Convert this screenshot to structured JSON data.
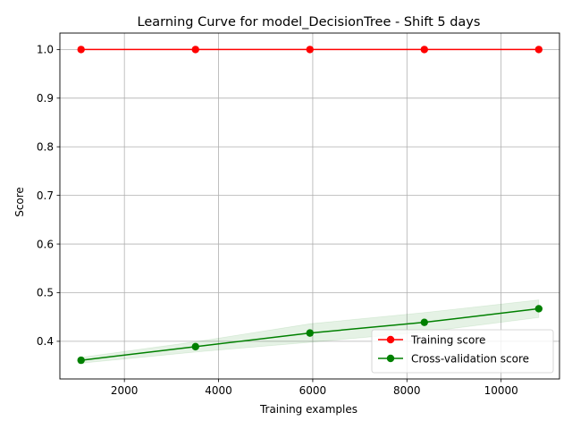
{
  "chart_data": {
    "type": "line",
    "title": "Learning Curve for model_DecisionTree - Shift 5 days",
    "xlabel": "Training examples",
    "ylabel": "Score",
    "xlim": [
      630,
      11240
    ],
    "ylim": [
      0.3226,
      1.0338
    ],
    "grid": true,
    "legend_position": "lower-right",
    "x_ticks": [
      2000,
      4000,
      6000,
      8000,
      10000
    ],
    "y_ticks": [
      0.4,
      0.5,
      0.6,
      0.7,
      0.8,
      0.9,
      1.0
    ],
    "y_tick_labels": [
      "0.4",
      "0.5",
      "0.6",
      "0.7",
      "0.8",
      "0.9",
      "1.0"
    ],
    "x": [
      1080,
      3510,
      5940,
      8370,
      10800
    ],
    "series": [
      {
        "name": "Training score",
        "color": "#ff0000",
        "values": [
          1.0,
          1.0,
          1.0,
          1.0,
          1.0
        ],
        "band_lower": [
          1.0,
          1.0,
          1.0,
          1.0,
          1.0
        ],
        "band_upper": [
          1.0,
          1.0,
          1.0,
          1.0,
          1.0
        ]
      },
      {
        "name": "Cross-validation score",
        "color": "#008000",
        "values": [
          0.361,
          0.389,
          0.417,
          0.439,
          0.467
        ],
        "band_lower": [
          0.355,
          0.378,
          0.398,
          0.419,
          0.449
        ],
        "band_upper": [
          0.367,
          0.399,
          0.436,
          0.459,
          0.485
        ]
      }
    ]
  }
}
